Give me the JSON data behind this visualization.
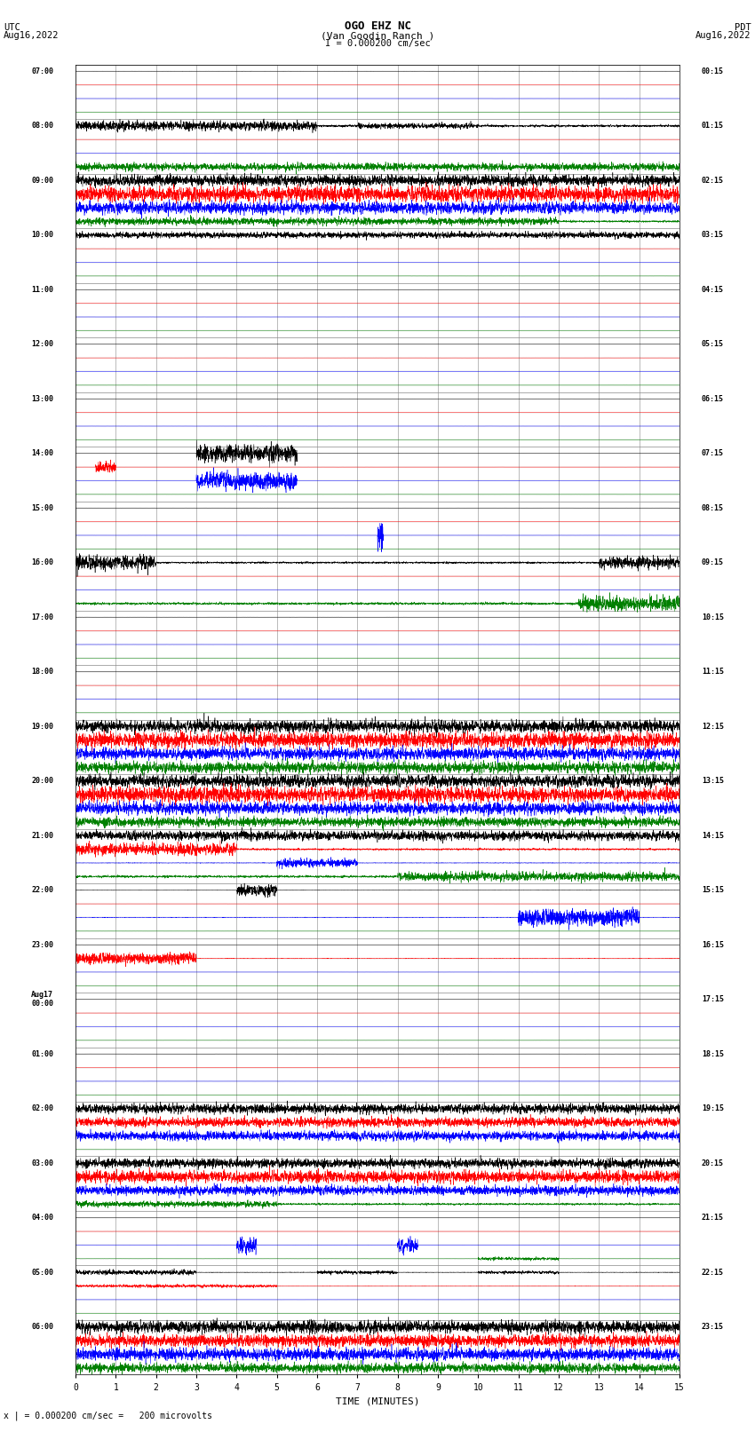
{
  "title_line1": "OGO EHZ NC",
  "title_line2": "(Van Goodin Ranch )",
  "title_line3": "I = 0.000200 cm/sec",
  "left_header_line1": "UTC",
  "left_header_line2": "Aug16,2022",
  "right_header_line1": "PDT",
  "right_header_line2": "Aug16,2022",
  "xlabel": "TIME (MINUTES)",
  "footer": "x | = 0.000200 cm/sec =   200 microvolts",
  "xmin": 0,
  "xmax": 15,
  "left_times": [
    "07:00",
    "08:00",
    "09:00",
    "10:00",
    "11:00",
    "12:00",
    "13:00",
    "14:00",
    "15:00",
    "16:00",
    "17:00",
    "18:00",
    "19:00",
    "20:00",
    "21:00",
    "22:00",
    "23:00",
    "Aug17\n00:00",
    "01:00",
    "02:00",
    "03:00",
    "04:00",
    "05:00",
    "06:00"
  ],
  "right_times": [
    "00:15",
    "01:15",
    "02:15",
    "03:15",
    "04:15",
    "05:15",
    "06:15",
    "07:15",
    "08:15",
    "09:15",
    "10:15",
    "11:15",
    "12:15",
    "13:15",
    "14:15",
    "15:15",
    "16:15",
    "17:15",
    "18:15",
    "19:15",
    "20:15",
    "21:15",
    "22:15",
    "23:15"
  ],
  "colors": [
    "black",
    "red",
    "blue",
    "green"
  ],
  "group_activity": {
    "0": [
      [
        0,
        0.03,
        []
      ],
      [
        1,
        0.01,
        []
      ],
      [
        2,
        0.01,
        []
      ],
      [
        3,
        0.01,
        []
      ]
    ],
    "1": [
      [
        0,
        0.5,
        [
          [
            0,
            6,
            1.5
          ],
          [
            7,
            3,
            0.8
          ]
        ]
      ],
      [
        1,
        0.01,
        []
      ],
      [
        2,
        0.01,
        []
      ],
      [
        3,
        0.6,
        [
          [
            0,
            15,
            1.2
          ]
        ]
      ]
    ],
    "2": [
      [
        0,
        0.6,
        [
          [
            0,
            15,
            1.8
          ]
        ]
      ],
      [
        1,
        0.7,
        [
          [
            0,
            15,
            2.5
          ]
        ]
      ],
      [
        2,
        0.6,
        [
          [
            0,
            15,
            2.0
          ]
        ]
      ],
      [
        3,
        0.4,
        [
          [
            0,
            12,
            1.2
          ]
        ]
      ]
    ],
    "3": [
      [
        0,
        0.3,
        [
          [
            0,
            15,
            1.0
          ]
        ]
      ],
      [
        1,
        0.01,
        []
      ],
      [
        2,
        0.01,
        []
      ],
      [
        3,
        0.01,
        []
      ]
    ],
    "4": [
      [
        0,
        0.01,
        []
      ],
      [
        1,
        0.01,
        []
      ],
      [
        2,
        0.01,
        []
      ],
      [
        3,
        0.01,
        []
      ]
    ],
    "5": [
      [
        0,
        0.01,
        []
      ],
      [
        1,
        0.01,
        []
      ],
      [
        2,
        0.01,
        []
      ],
      [
        3,
        0.01,
        []
      ]
    ],
    "6": [
      [
        0,
        0.01,
        []
      ],
      [
        1,
        0.01,
        []
      ],
      [
        2,
        0.01,
        []
      ],
      [
        3,
        0.01,
        []
      ]
    ],
    "7": [
      [
        0,
        0.01,
        [
          [
            3,
            2.5,
            3.0
          ]
        ]
      ],
      [
        1,
        0.01,
        [
          [
            0.5,
            0.5,
            2.0
          ]
        ]
      ],
      [
        2,
        0.01,
        [
          [
            3,
            2.5,
            3.0
          ]
        ]
      ],
      [
        3,
        0.01,
        []
      ]
    ],
    "8": [
      [
        0,
        0.01,
        []
      ],
      [
        1,
        0.01,
        []
      ],
      [
        2,
        0.01,
        [
          [
            7.5,
            0.15,
            5.0
          ]
        ]
      ],
      [
        3,
        0.01,
        []
      ]
    ],
    "9": [
      [
        0,
        0.4,
        [
          [
            0,
            2,
            2.5
          ],
          [
            13,
            2,
            2.0
          ]
        ]
      ],
      [
        1,
        0.01,
        []
      ],
      [
        2,
        0.01,
        []
      ],
      [
        3,
        0.5,
        [
          [
            12.5,
            2.5,
            2.5
          ]
        ]
      ]
    ],
    "10": [
      [
        0,
        0.02,
        []
      ],
      [
        1,
        0.01,
        []
      ],
      [
        2,
        0.01,
        []
      ],
      [
        3,
        0.01,
        []
      ]
    ],
    "11": [
      [
        0,
        0.01,
        []
      ],
      [
        1,
        0.01,
        []
      ],
      [
        2,
        0.01,
        []
      ],
      [
        3,
        0.01,
        []
      ]
    ],
    "12": [
      [
        0,
        0.7,
        [
          [
            0,
            15,
            2.0
          ]
        ]
      ],
      [
        1,
        0.7,
        [
          [
            0,
            15,
            2.5
          ]
        ]
      ],
      [
        2,
        0.7,
        [
          [
            0,
            15,
            2.0
          ]
        ]
      ],
      [
        3,
        0.6,
        [
          [
            0,
            15,
            1.8
          ]
        ]
      ]
    ],
    "13": [
      [
        0,
        0.7,
        [
          [
            0,
            15,
            2.0
          ]
        ]
      ],
      [
        1,
        0.7,
        [
          [
            0,
            15,
            2.5
          ]
        ]
      ],
      [
        2,
        0.6,
        [
          [
            0,
            15,
            2.0
          ]
        ]
      ],
      [
        3,
        0.5,
        [
          [
            0,
            15,
            1.5
          ]
        ]
      ]
    ],
    "14": [
      [
        0,
        0.5,
        [
          [
            0,
            15,
            1.5
          ]
        ]
      ],
      [
        1,
        0.4,
        [
          [
            0,
            4,
            2.0
          ]
        ]
      ],
      [
        2,
        0.1,
        [
          [
            5,
            2,
            1.5
          ]
        ]
      ],
      [
        3,
        0.5,
        [
          [
            8,
            7,
            1.5
          ]
        ]
      ]
    ],
    "15": [
      [
        0,
        0.05,
        [
          [
            4,
            1,
            2.0
          ]
        ]
      ],
      [
        1,
        0.01,
        []
      ],
      [
        2,
        0.1,
        [
          [
            11,
            3,
            3.0
          ]
        ]
      ],
      [
        3,
        0.01,
        []
      ]
    ],
    "16": [
      [
        0,
        0.01,
        []
      ],
      [
        1,
        0.1,
        [
          [
            0,
            3,
            2.0
          ]
        ]
      ],
      [
        2,
        0.01,
        []
      ],
      [
        3,
        0.01,
        []
      ]
    ],
    "17": [
      [
        0,
        0.01,
        []
      ],
      [
        1,
        0.01,
        []
      ],
      [
        2,
        0.01,
        []
      ],
      [
        3,
        0.01,
        []
      ]
    ],
    "18": [
      [
        0,
        0.01,
        []
      ],
      [
        1,
        0.01,
        []
      ],
      [
        2,
        0.01,
        []
      ],
      [
        3,
        0.01,
        []
      ]
    ],
    "19": [
      [
        0,
        0.5,
        [
          [
            0,
            15,
            1.5
          ]
        ]
      ],
      [
        1,
        0.4,
        [
          [
            0,
            15,
            1.5
          ]
        ]
      ],
      [
        2,
        0.5,
        [
          [
            0,
            15,
            1.5
          ]
        ]
      ],
      [
        3,
        0.01,
        []
      ]
    ],
    "20": [
      [
        0,
        0.5,
        [
          [
            0,
            15,
            1.5
          ]
        ]
      ],
      [
        1,
        0.5,
        [
          [
            0,
            15,
            2.0
          ]
        ]
      ],
      [
        2,
        0.5,
        [
          [
            0,
            15,
            1.5
          ]
        ]
      ],
      [
        3,
        0.4,
        [
          [
            0,
            5,
            1.0
          ]
        ]
      ]
    ],
    "21": [
      [
        0,
        0.01,
        []
      ],
      [
        1,
        0.01,
        []
      ],
      [
        2,
        0.02,
        [
          [
            4,
            0.5,
            3.0
          ],
          [
            8,
            0.5,
            2.5
          ]
        ]
      ],
      [
        3,
        0.02,
        [
          [
            10,
            2,
            0.5
          ]
        ]
      ]
    ],
    "22": [
      [
        0,
        0.08,
        [
          [
            0,
            3,
            0.8
          ],
          [
            6,
            2,
            0.6
          ],
          [
            10,
            2,
            0.5
          ]
        ]
      ],
      [
        1,
        0.06,
        [
          [
            0,
            5,
            0.5
          ]
        ]
      ],
      [
        2,
        0.01,
        []
      ],
      [
        3,
        0.01,
        []
      ]
    ],
    "23": [
      [
        0,
        0.7,
        [
          [
            0,
            15,
            2.0
          ]
        ]
      ],
      [
        1,
        0.7,
        [
          [
            0,
            15,
            2.0
          ]
        ]
      ],
      [
        2,
        0.7,
        [
          [
            0,
            15,
            2.0
          ]
        ]
      ],
      [
        3,
        0.6,
        [
          [
            0,
            15,
            1.5
          ]
        ]
      ]
    ]
  }
}
